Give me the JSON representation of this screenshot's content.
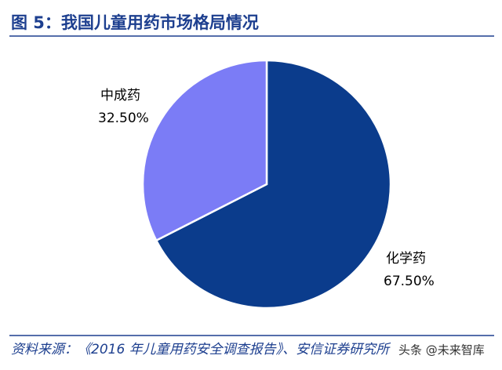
{
  "chart_data": {
    "type": "pie",
    "title": "图 5：我国儿童用药市场格局情况",
    "categories": [
      "化学药",
      "中成药"
    ],
    "values": [
      67.5,
      32.5
    ],
    "value_labels": [
      "67.50%",
      "32.50%"
    ],
    "colors": [
      "#0b3c8c",
      "#7b7cf6"
    ]
  },
  "source": "资料来源：《2016 年儿童用药安全调查报告》、安信证券研究所",
  "watermark": "头条 @未来智库"
}
